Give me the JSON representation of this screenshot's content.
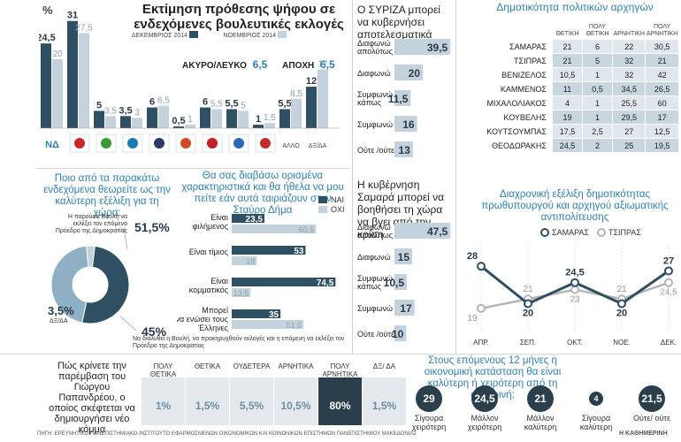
{
  "chart_data": [
    {
      "type": "bar",
      "id": "vote-estimate",
      "title": "Εκτίμηση πρόθεσης ψήφου σε ενδεχόμενες βουλευτικές εκλογές",
      "unit": "%",
      "categories": [
        "ΝΔ",
        "ΣΥΡΙΖΑ",
        "ΠΑΣΟΚ",
        "ΠΟΤΑΜΙ",
        "ΑΝΕΛ",
        "ΔΗΜΑΡ",
        "ΚΚΕ",
        "ΚΙΔΗΣΟ",
        "ΧΑ",
        "ΑΛΛΟ",
        "ΔΞ/ΔΑ"
      ],
      "category_labels": {
        "ΝΔ": "ΝΔ",
        "ΑΛΛΟ": "ΑΛΛΟ",
        "ΔΞ/ΔΑ": "ΔΞ/ΔΑ"
      },
      "series": [
        {
          "name": "ΔΕΚΕΜΒΡΙΟΣ 2014",
          "color": "#2f4f63",
          "values": [
            24.5,
            31,
            5,
            3.5,
            6,
            0.5,
            6,
            5.5,
            1,
            5.5,
            12
          ]
        },
        {
          "name": "ΝΟΕΜΒΡΙΟΣ 2014",
          "color": "#c3d2dc",
          "values": [
            20,
            27.5,
            3.5,
            3,
            6.5,
            1,
            5.5,
            5,
            1.5,
            8.5,
            17
          ]
        }
      ],
      "value_labels": [
        [
          "24,5",
          "31",
          "5",
          "3,5",
          "6",
          "0,5",
          "6",
          "5,5",
          "1",
          "5,5",
          "12"
        ],
        [
          "20",
          "27,5",
          "3,5",
          "3",
          "6,5",
          "1",
          "5,5",
          "5",
          "1,5",
          "8,5",
          "17"
        ]
      ],
      "ylim": [
        0,
        34
      ],
      "extra": {
        "akyro_label": "ΑΚΥΡΟ/ΛΕΥΚΟ",
        "akyro_value": "6,5",
        "apoxi_label": "ΑΠΟΧΗ",
        "apoxi_value": "6,5"
      }
    },
    {
      "type": "bar",
      "id": "syriza-effective",
      "title": "Ο ΣΥΡΙΖΑ μπορεί να κυβερνήσει αποτελεσματικά",
      "categories": [
        "Διαφωνώ απολύτως",
        "Διαφωνώ",
        "Συμφωνώ κάπως",
        "Συμφωνώ",
        "Ούτε /ούτε"
      ],
      "values": [
        39.5,
        20,
        11.5,
        16,
        13
      ],
      "value_labels": [
        "39,5",
        "20",
        "11,5",
        "16",
        "13"
      ],
      "xlim": [
        0,
        40
      ]
    },
    {
      "type": "bar",
      "id": "samaras-help",
      "title": "Η κυβέρνηση Σαμαρά μπορεί να βοηθήσει τη χώρα να βγει από την κρίση",
      "categories": [
        "Διαφωνώ απολύτως",
        "Διαφωνώ",
        "Συμφωνώ κάπως",
        "Συμφωνώ",
        "Ούτε /ούτε"
      ],
      "values": [
        47.5,
        15,
        10.5,
        17,
        10
      ],
      "value_labels": [
        "47,5",
        "15",
        "10,5",
        "17",
        "10"
      ],
      "xlim": [
        0,
        48
      ]
    },
    {
      "type": "table",
      "id": "leader-popularity",
      "title": "Δημοτικότητα πολιτικών αρχηγών",
      "columns": [
        "ΘΕΤΙΚΗ",
        "ΠΟΛΥ ΘΕΤΙΚΗ",
        "ΑΡΝΗΤΙΚΗ",
        "ΠΟΛΥ ΑΡΝΗΤΙΚΗ"
      ],
      "rows": [
        {
          "name": "ΣΑΜΑΡΑΣ",
          "values": [
            "21",
            "6",
            "22",
            "30,5"
          ]
        },
        {
          "name": "ΤΣΙΠΡΑΣ",
          "values": [
            "21",
            "5",
            "32",
            "21"
          ]
        },
        {
          "name": "ΒΕΝΙΖΕΛΟΣ",
          "values": [
            "10,5",
            "1",
            "32",
            "42"
          ]
        },
        {
          "name": "ΚΑΜΜΕΝΟΣ",
          "values": [
            "11",
            "0,5",
            "34,5",
            "26,5"
          ]
        },
        {
          "name": "ΜΙΧΑΛΟΛΙΑΚΟΣ",
          "values": [
            "4",
            "1",
            "25,5",
            "60"
          ]
        },
        {
          "name": "ΚΟΥΒΕΛΗΣ",
          "values": [
            "19",
            "1",
            "29,5",
            "17"
          ]
        },
        {
          "name": "ΚΟΥΤΣΟΥΜΠΑΣ",
          "values": [
            "17,5",
            "2,5",
            "27",
            "12,5"
          ]
        },
        {
          "name": "ΘΕΟΔΩΡΑΚΗΣ",
          "values": [
            "24,5",
            "2",
            "25",
            "19,5"
          ]
        }
      ]
    },
    {
      "type": "line",
      "id": "pm-opposition-trend",
      "title": "Διαχρονική εξέλιξη δημοτικότητας πρωθυπουργού και αρχηγού αξιωματικής αντιπολίτευσης",
      "categories": [
        "ΑΠΡ.",
        "ΣΕΠ.",
        "ΟΚΤ.",
        "ΝΟΕ.",
        "ΔΕΚ."
      ],
      "series": [
        {
          "name": "ΣΑΜΑΡΑΣ",
          "color": "#2f4f63",
          "values": [
            28,
            20,
            24.5,
            20,
            27
          ],
          "labels": [
            "28",
            "20",
            "24,5",
            "20",
            "27"
          ]
        },
        {
          "name": "ΤΣΙΠΡΑΣ",
          "color": "#b5b5b5",
          "values": [
            19,
            21,
            23,
            21,
            24.5
          ],
          "labels": [
            "19",
            "21",
            "23",
            "21",
            "24,5"
          ]
        }
      ],
      "ylim": [
        15,
        32
      ]
    },
    {
      "type": "pie",
      "id": "scenario-donut",
      "title": "Ποιο από τα παρακάτω ενδεχόμενα θεωρείτε ως την καλύτερη εξέλιξη για τη χώρα;",
      "slices": [
        {
          "label": "Η παρούσα Βουλή να εκλέξει τον επόμενο Πρόεδρο της Δημοκρατίας",
          "value": 51.5,
          "value_label": "51,5",
          "color": "#2f4f63"
        },
        {
          "label": "Να διαλυθεί η Βουλή, να προκηρυχθούν εκλογές και η επόμενη να εκλέξει τον Πρόεδρο της Δημοκρατίας",
          "value": 45,
          "value_label": "45",
          "color": "#8fb0c4"
        },
        {
          "label": "ΔΞ/ΔΑ",
          "value": 3.5,
          "value_label": "3,5",
          "color": "#c3d2dc"
        }
      ]
    },
    {
      "type": "bar",
      "id": "stavros-dimas",
      "title": "Θα σας διαβάσω ορισμένα χαρακτηριστικά και θα ήθελα να μου πείτε εάν αυτά ταιριάζουν στον Σταύρο Δήμα",
      "categories": [
        "Είναι φιλήμενος",
        "Είναι τίμιος",
        "Είναι κομματικός",
        "Μπορεί να ενώσει τους Έλληνες"
      ],
      "category_labels": [
        "Είναι\nφιλήμενος",
        "Είναι τίμιος",
        "Είναι\nκομματικός",
        "Μπορεί\nνα ενώσει τους\nΈλληνες"
      ],
      "series": [
        {
          "name": "ΝΑΙ",
          "color": "#2f4f63",
          "values": [
            23.5,
            53,
            74.5,
            35
          ],
          "labels": [
            "23,5",
            "53",
            "74,5",
            "35"
          ]
        },
        {
          "name": "ΟΧΙ",
          "color": "#c3d2dc",
          "values": [
            60.5,
            18,
            13.5,
            51.5
          ],
          "labels": [
            "60,5",
            "18",
            "13,5",
            "51,5"
          ]
        }
      ],
      "xlim": [
        0,
        80
      ]
    },
    {
      "type": "table",
      "id": "papandreou",
      "title": "Πώς κρίνετε την παρέμβαση του Γιώργου Παπανδρέου, ο οποίος σκέφτεται να δημιουργήσει νέο κόμμα",
      "columns": [
        "ΠΟΛΥ ΘΕΤΙΚΑ",
        "ΘΕΤΙΚΑ",
        "ΟΥΔΕΤΕΡΑ",
        "ΑΡΝΗΤΙΚΑ",
        "ΠΟΛΥ ΑΡΝΗΤΙΚΑ",
        "ΔΞ/ ΔΑ"
      ],
      "values": [
        "1%",
        "1,5%",
        "5,5%",
        "10,5%",
        "80%",
        "1,5%"
      ]
    },
    {
      "type": "table",
      "id": "economy-outlook",
      "title": "Στους επόμενους 12 μήνες η οικονομική κατάσταση θα είναι καλύτερη ή χειρότερη από τη σημερινή;",
      "items": [
        {
          "value": "29",
          "label": "Σίγουρα χειρότερη"
        },
        {
          "value": "24,5",
          "label": "Μάλλον χειρότερη"
        },
        {
          "value": "21",
          "label": "Μάλλον καλύτερη"
        },
        {
          "value": "4",
          "label": "Σίγουρα καλύτερη"
        },
        {
          "value": "21,5",
          "label": "Ούτε/ ούτε"
        }
      ]
    }
  ],
  "source": "ΠΗΓΗ: ΕΡΕΥΝΗΤΙΚΟ ΠΑΝΕΠΙΣΤΗΜΙΑΚΟ ΙΝΣΤΙΤΟΥΤΟ ΕΦΑΡΜΟΣΜΕΝΩΝ ΟΙΚΟΝΟΜΙΚΩΝ ΚΑΙ ΚΟΙΝΩΝΙΚΩΝ ΕΠΙΣΤΗΜΩΝ ΠΑΝΕΠΙΣΤΗΜΙΟΥ ΜΑΚΕΔΟΝΙΑΣ",
  "publisher": "Η ΚΑΘΗΜΕΡΙΝΗ",
  "colors": {
    "dark": "#2f4f63",
    "light": "#c3d2dc",
    "accent": "#2f7fb0"
  }
}
